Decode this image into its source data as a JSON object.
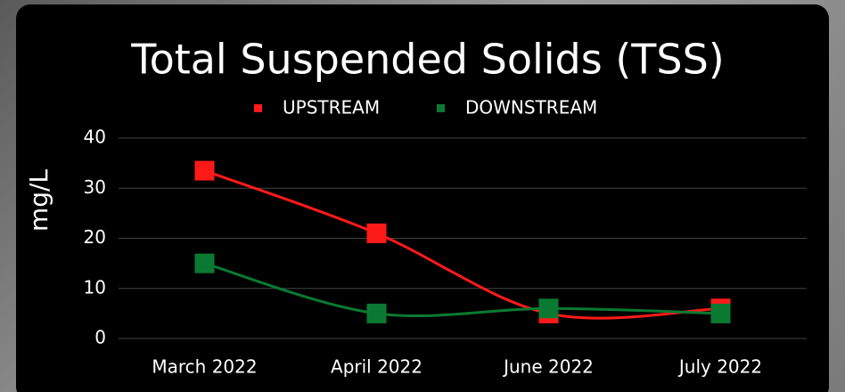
{
  "chart_data": {
    "type": "line",
    "title": "Total Suspended Solids (TSS)",
    "y_label": "mg/L",
    "categories": [
      "March 2022",
      "April 2022",
      "June 2022",
      "July 2022"
    ],
    "series": [
      {
        "name": "UPSTREAM",
        "color": "#ff1a1a",
        "values": [
          33.5,
          21,
          5,
          6
        ]
      },
      {
        "name": "DOWNSTREAM",
        "color": "#0a7a32",
        "values": [
          15,
          5,
          6,
          5
        ]
      }
    ],
    "ylim": [
      0,
      40
    ],
    "yticks": [
      0,
      10,
      20,
      30,
      40
    ],
    "grid": true,
    "legend": "top",
    "smooth": true
  }
}
